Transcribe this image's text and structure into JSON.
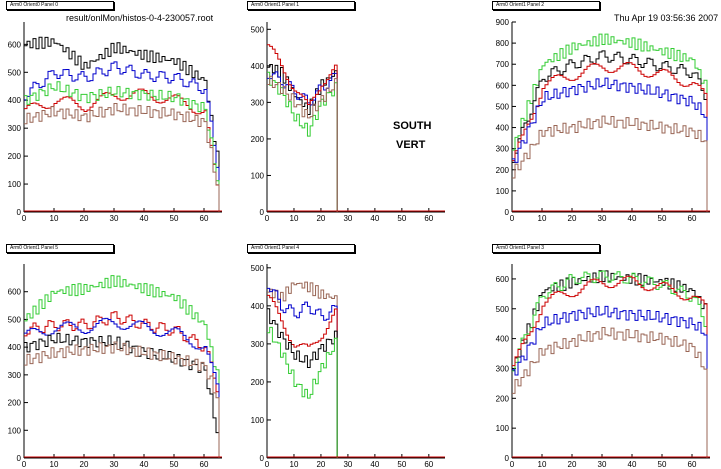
{
  "header": {
    "file": "result/onlMon/histos-0-4-230057.root",
    "date": "Thu Apr 19 03:56:36 2007"
  },
  "notes": [
    "SOUTH",
    "VERT"
  ],
  "colors": {
    "black": "#000000",
    "blue": "#0000cc",
    "red": "#cc0000",
    "green": "#33cc33",
    "brown": "#996655",
    "axis": "#000000"
  },
  "chart_data": [
    {
      "title": "Arm0 Orient0 Panel 0",
      "type": "line",
      "xlim": [
        0,
        66
      ],
      "ylim": [
        0,
        680
      ],
      "xticks": [
        0,
        10,
        20,
        30,
        40,
        50,
        60
      ],
      "yticks": [
        0,
        100,
        200,
        300,
        400,
        500,
        600
      ],
      "series": [
        {
          "color": "#000000",
          "x": [
            0,
            10,
            20,
            30,
            40,
            50,
            60,
            64
          ],
          "values": [
            600,
            610,
            520,
            590,
            560,
            540,
            470,
            200
          ]
        },
        {
          "color": "#0000cc",
          "x": [
            0,
            10,
            20,
            30,
            40,
            50,
            60,
            64
          ],
          "values": [
            420,
            500,
            480,
            520,
            490,
            480,
            440,
            180
          ]
        },
        {
          "color": "#cc0000",
          "x": [
            0,
            10,
            20,
            30,
            40,
            50,
            60,
            64
          ],
          "values": [
            360,
            400,
            380,
            420,
            420,
            400,
            360,
            80
          ]
        },
        {
          "color": "#33cc33",
          "x": [
            0,
            10,
            20,
            30,
            40,
            50,
            60,
            64
          ],
          "values": [
            400,
            450,
            410,
            430,
            420,
            410,
            370,
            120
          ]
        },
        {
          "color": "#996655",
          "x": [
            0,
            10,
            20,
            30,
            40,
            50,
            60,
            64
          ],
          "values": [
            330,
            360,
            340,
            370,
            360,
            350,
            320,
            100
          ]
        }
      ]
    },
    {
      "title": "Arm0 Orient1 Panel 1",
      "type": "line",
      "xlim": [
        0,
        66
      ],
      "ylim": [
        0,
        520
      ],
      "xticks": [
        0,
        10,
        20,
        30,
        40,
        50,
        60
      ],
      "yticks": [
        0,
        100,
        200,
        300,
        400,
        500
      ],
      "series": [
        {
          "color": "#000000",
          "x": [
            0,
            5,
            10,
            15,
            20,
            25
          ],
          "values": [
            400,
            380,
            320,
            280,
            350,
            380
          ]
        },
        {
          "color": "#0000cc",
          "x": [
            0,
            5,
            10,
            15,
            20,
            25
          ],
          "values": [
            380,
            360,
            330,
            300,
            340,
            370
          ]
        },
        {
          "color": "#cc0000",
          "x": [
            0,
            5,
            10,
            15,
            20,
            25
          ],
          "values": [
            450,
            400,
            340,
            280,
            360,
            390
          ]
        },
        {
          "color": "#33cc33",
          "x": [
            0,
            5,
            10,
            15,
            20,
            25
          ],
          "values": [
            370,
            330,
            260,
            220,
            300,
            340
          ]
        },
        {
          "color": "#996655",
          "x": [
            0,
            5,
            10,
            15,
            20,
            25
          ],
          "values": [
            360,
            340,
            300,
            260,
            310,
            350
          ]
        }
      ]
    },
    {
      "title": "Arm0 Orient1 Panel 2",
      "type": "line",
      "xlim": [
        0,
        66
      ],
      "ylim": [
        0,
        900
      ],
      "xticks": [
        0,
        10,
        20,
        30,
        40,
        50,
        60
      ],
      "yticks": [
        0,
        100,
        200,
        300,
        400,
        500,
        600,
        700,
        800,
        900
      ],
      "series": [
        {
          "color": "#33cc33",
          "x": [
            0,
            10,
            20,
            30,
            40,
            50,
            60,
            64
          ],
          "values": [
            300,
            700,
            780,
            820,
            800,
            760,
            720,
            600
          ]
        },
        {
          "color": "#000000",
          "x": [
            0,
            10,
            20,
            30,
            40,
            50,
            60,
            64
          ],
          "values": [
            260,
            640,
            700,
            740,
            720,
            690,
            660,
            560
          ]
        },
        {
          "color": "#cc0000",
          "x": [
            0,
            10,
            20,
            30,
            40,
            50,
            60,
            64
          ],
          "values": [
            230,
            600,
            650,
            690,
            680,
            650,
            610,
            540
          ]
        },
        {
          "color": "#0000cc",
          "x": [
            0,
            10,
            20,
            30,
            40,
            50,
            60,
            64
          ],
          "values": [
            230,
            540,
            580,
            610,
            590,
            560,
            520,
            460
          ]
        },
        {
          "color": "#996655",
          "x": [
            0,
            10,
            20,
            30,
            40,
            50,
            60,
            64
          ],
          "values": [
            180,
            380,
            400,
            430,
            420,
            400,
            380,
            340
          ]
        }
      ]
    },
    {
      "title": "Arm0 Orient1 Panel 5",
      "type": "line",
      "xlim": [
        0,
        66
      ],
      "ylim": [
        0,
        700
      ],
      "xticks": [
        0,
        10,
        20,
        30,
        40,
        50,
        60
      ],
      "yticks": [
        0,
        100,
        200,
        300,
        400,
        500,
        600
      ],
      "series": [
        {
          "color": "#33cc33",
          "x": [
            0,
            10,
            20,
            30,
            40,
            50,
            60,
            64
          ],
          "values": [
            500,
            600,
            610,
            640,
            610,
            580,
            480,
            300
          ]
        },
        {
          "color": "#cc0000",
          "x": [
            0,
            10,
            20,
            30,
            40,
            50,
            60,
            64
          ],
          "values": [
            460,
            480,
            480,
            510,
            480,
            460,
            400,
            260
          ]
        },
        {
          "color": "#0000cc",
          "x": [
            0,
            10,
            20,
            30,
            40,
            50,
            60,
            64
          ],
          "values": [
            440,
            470,
            470,
            490,
            470,
            450,
            400,
            250
          ]
        },
        {
          "color": "#000000",
          "x": [
            0,
            10,
            20,
            30,
            40,
            50,
            60,
            64
          ],
          "values": [
            400,
            430,
            420,
            420,
            380,
            360,
            320,
            100
          ]
        },
        {
          "color": "#996655",
          "x": [
            0,
            10,
            20,
            30,
            40,
            50,
            60,
            64
          ],
          "values": [
            350,
            380,
            390,
            400,
            380,
            360,
            330,
            220
          ]
        }
      ]
    },
    {
      "title": "Arm0 Orient1 Panel 4",
      "type": "line",
      "xlim": [
        0,
        66
      ],
      "ylim": [
        0,
        510
      ],
      "xticks": [
        0,
        10,
        20,
        30,
        40,
        50,
        60
      ],
      "yticks": [
        0,
        100,
        200,
        300,
        400,
        500
      ],
      "series": [
        {
          "color": "#996655",
          "x": [
            0,
            5,
            10,
            15,
            20,
            25
          ],
          "values": [
            440,
            420,
            460,
            450,
            430,
            420
          ]
        },
        {
          "color": "#0000cc",
          "x": [
            0,
            5,
            10,
            15,
            20,
            25
          ],
          "values": [
            460,
            400,
            380,
            400,
            370,
            390
          ]
        },
        {
          "color": "#cc0000",
          "x": [
            0,
            5,
            10,
            15,
            20,
            25
          ],
          "values": [
            420,
            360,
            300,
            280,
            330,
            380
          ]
        },
        {
          "color": "#000000",
          "x": [
            0,
            5,
            10,
            15,
            20,
            25
          ],
          "values": [
            380,
            320,
            270,
            250,
            290,
            320
          ]
        },
        {
          "color": "#33cc33",
          "x": [
            0,
            5,
            10,
            15,
            20,
            25
          ],
          "values": [
            340,
            280,
            200,
            160,
            240,
            300
          ]
        }
      ]
    },
    {
      "title": "Arm0 Orient1 Panel 3",
      "type": "line",
      "xlim": [
        0,
        66
      ],
      "ylim": [
        0,
        650
      ],
      "xticks": [
        0,
        10,
        20,
        30,
        40,
        50,
        60
      ],
      "yticks": [
        0,
        100,
        200,
        300,
        400,
        500,
        600
      ],
      "series": [
        {
          "color": "#000000",
          "x": [
            0,
            10,
            20,
            30,
            40,
            50,
            60,
            64
          ],
          "values": [
            300,
            560,
            590,
            610,
            600,
            590,
            560,
            500
          ]
        },
        {
          "color": "#33cc33",
          "x": [
            0,
            10,
            20,
            30,
            40,
            50,
            60,
            64
          ],
          "values": [
            310,
            550,
            600,
            610,
            600,
            580,
            540,
            460
          ]
        },
        {
          "color": "#cc0000",
          "x": [
            0,
            10,
            20,
            30,
            40,
            50,
            60,
            64
          ],
          "values": [
            300,
            520,
            560,
            590,
            590,
            570,
            540,
            500
          ]
        },
        {
          "color": "#0000cc",
          "x": [
            0,
            10,
            20,
            30,
            40,
            50,
            60,
            64
          ],
          "values": [
            280,
            450,
            480,
            490,
            480,
            470,
            450,
            420
          ]
        },
        {
          "color": "#996655",
          "x": [
            0,
            10,
            20,
            30,
            40,
            50,
            60,
            64
          ],
          "values": [
            230,
            360,
            390,
            420,
            410,
            400,
            370,
            300
          ]
        }
      ]
    }
  ]
}
